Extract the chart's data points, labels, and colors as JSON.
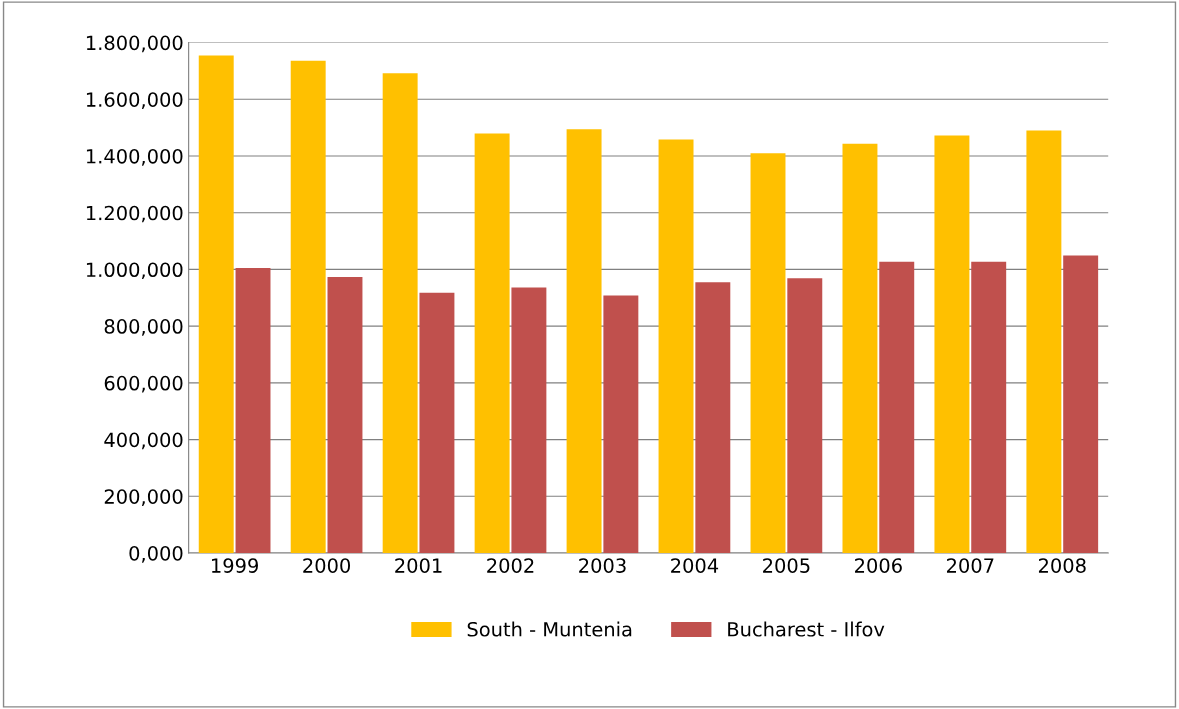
{
  "chart_data": {
    "type": "bar",
    "categories": [
      "1999",
      "2000",
      "2001",
      "2002",
      "2003",
      "2004",
      "2005",
      "2006",
      "2007",
      "2008"
    ],
    "series": [
      {
        "name": "South - Muntenia",
        "color": "#ffc000",
        "values": [
          1754,
          1736,
          1692,
          1479,
          1494,
          1458,
          1410,
          1443,
          1472,
          1490
        ]
      },
      {
        "name": "Bucharest - Ilfov",
        "color": "#c0504d",
        "values": [
          1005,
          973,
          918,
          936,
          908,
          955,
          969,
          1027,
          1027,
          1049
        ]
      }
    ],
    "ylim": [
      0,
      1800
    ],
    "yticks": [
      {
        "value": 0,
        "label": "0,000"
      },
      {
        "value": 200,
        "label": "200,000"
      },
      {
        "value": 400,
        "label": "400,000"
      },
      {
        "value": 600,
        "label": "600,000"
      },
      {
        "value": 800,
        "label": "800,000"
      },
      {
        "value": 1000,
        "label": "1.000,000"
      },
      {
        "value": 1200,
        "label": "1.200,000"
      },
      {
        "value": 1400,
        "label": "1.400,000"
      },
      {
        "value": 1600,
        "label": "1.600,000"
      },
      {
        "value": 1800,
        "label": "1.800,000"
      }
    ],
    "grid": "y",
    "legend": "bottom"
  }
}
